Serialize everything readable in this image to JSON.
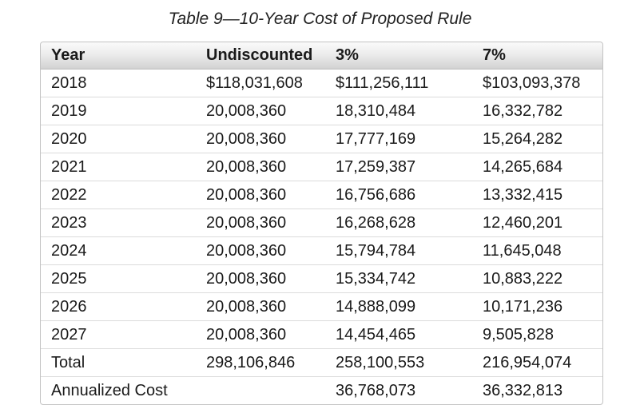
{
  "title": "Table 9—10-Year Cost of Proposed Rule",
  "table": {
    "columns": [
      "Year",
      "Undiscounted",
      "3%",
      "7%"
    ],
    "rows": [
      [
        "2018",
        "$118,031,608",
        "$111,256,111",
        "$103,093,378"
      ],
      [
        "2019",
        "20,008,360",
        "18,310,484",
        "16,332,782"
      ],
      [
        "2020",
        "20,008,360",
        "17,777,169",
        "15,264,282"
      ],
      [
        "2021",
        "20,008,360",
        "17,259,387",
        "14,265,684"
      ],
      [
        "2022",
        "20,008,360",
        "16,756,686",
        "13,332,415"
      ],
      [
        "2023",
        "20,008,360",
        "16,268,628",
        "12,460,201"
      ],
      [
        "2024",
        "20,008,360",
        "15,794,784",
        "11,645,048"
      ],
      [
        "2025",
        "20,008,360",
        "15,334,742",
        "10,883,222"
      ],
      [
        "2026",
        "20,008,360",
        "14,888,099",
        "10,171,236"
      ],
      [
        "2027",
        "20,008,360",
        "14,454,465",
        "9,505,828"
      ],
      [
        "Total",
        "298,106,846",
        "258,100,553",
        "216,954,074"
      ],
      [
        "Annualized Cost",
        "",
        "36,768,073",
        "36,332,813"
      ]
    ]
  },
  "colors": {
    "text": "#1a1a1a",
    "table_border": "#c3c3c3",
    "row_divider": "#dbdbdb",
    "header_gradient_top": "#fafafa",
    "header_gradient_bottom": "#d2d2d2"
  }
}
